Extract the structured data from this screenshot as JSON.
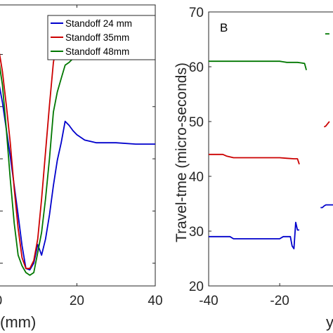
{
  "chart_data": [
    {
      "type": "line",
      "panel_label": "",
      "xlabel": "(mm)",
      "ylabel": "",
      "xlim": [
        -5,
        40
      ],
      "ylim": [
        -0.95,
        1.15
      ],
      "grid": false,
      "legend_position": "top-right",
      "x_ticks": [
        0,
        20,
        40
      ],
      "x_tick_labels": [
        "0",
        "20",
        "40"
      ],
      "series": [
        {
          "name": "Standoff 24 mm",
          "color": "#0000cc",
          "x": [
            -5,
            -4.5,
            -4,
            -3,
            -2,
            -1,
            0,
            1,
            2,
            3,
            4,
            5,
            6,
            7,
            8,
            9,
            10,
            11,
            12,
            13,
            14,
            15,
            16,
            17,
            18,
            19,
            20,
            22,
            25,
            30,
            35,
            40
          ],
          "y": [
            -0.02,
            0.08,
            0.12,
            0.22,
            0.3,
            0.38,
            0.58,
            0.42,
            0.22,
            0.02,
            -0.2,
            -0.42,
            -0.65,
            -0.82,
            -0.83,
            -0.78,
            -0.64,
            -0.72,
            -0.6,
            -0.42,
            -0.2,
            -0.01,
            0.12,
            0.28,
            0.25,
            0.21,
            0.18,
            0.14,
            0.12,
            0.12,
            0.11,
            0.11
          ]
        },
        {
          "name": "Standoff 35mm",
          "color": "#cc0000",
          "x": [
            -5,
            -4.5,
            -4,
            -3,
            -2,
            -1,
            0,
            1,
            2,
            3,
            4,
            5,
            6,
            7,
            8,
            9,
            10,
            11,
            12,
            13,
            14,
            15,
            16,
            17,
            18,
            19,
            20,
            22,
            25,
            28,
            30,
            35,
            40
          ],
          "y": [
            0.15,
            0.6,
            0.68,
            0.78,
            0.86,
            0.93,
            0.83,
            0.65,
            0.4,
            0.12,
            -0.22,
            -0.52,
            -0.74,
            -0.82,
            -0.82,
            -0.76,
            -0.6,
            -0.3,
            0.05,
            0.4,
            0.72,
            0.88,
            0.94,
            0.97,
            0.99,
            0.96,
            0.98,
            0.97,
            0.98,
            0.99,
            0.98,
            0.98,
            0.98
          ]
        },
        {
          "name": "Standoff 48mm",
          "color": "#007700",
          "x": [
            -5,
            -4.5,
            -4,
            -3,
            -2,
            -1,
            0,
            1,
            2,
            3,
            4,
            5,
            6,
            7,
            8,
            9,
            10,
            11,
            12,
            13,
            14,
            15,
            16,
            17,
            18,
            19,
            20,
            22,
            25,
            30,
            35,
            40
          ],
          "y": [
            -0.05,
            0.05,
            0.15,
            0.45,
            0.6,
            0.7,
            0.75,
            0.55,
            0.22,
            -0.15,
            -0.48,
            -0.72,
            -0.8,
            -0.85,
            -0.87,
            -0.85,
            -0.7,
            -0.55,
            -0.3,
            0.0,
            0.35,
            0.5,
            0.6,
            0.7,
            0.72,
            0.75,
            0.78,
            0.8,
            0.8,
            0.8,
            0.81,
            0.81
          ]
        }
      ]
    },
    {
      "type": "line",
      "panel_label": "B",
      "xlabel": "y",
      "ylabel": "Travel-tme (micro-seconds)",
      "xlim": [
        -40,
        -5
      ],
      "ylim": [
        20,
        70
      ],
      "y_ticks": [
        20,
        30,
        40,
        50,
        60,
        70
      ],
      "y_tick_labels": [
        "20",
        "30",
        "40",
        "50",
        "60",
        "70"
      ],
      "x_ticks": [
        -40,
        -20
      ],
      "x_tick_labels": [
        "-40",
        "-20"
      ],
      "grid": false,
      "series": [
        {
          "color": "#007700",
          "x": [
            -40,
            -35,
            -30,
            -25,
            -21,
            -20,
            -19,
            -18,
            -17,
            -16,
            -15,
            -14,
            -13,
            -12.5
          ],
          "y": [
            61,
            61,
            61,
            61,
            61,
            61,
            60.9,
            60.8,
            60.8,
            60.8,
            60.8,
            60.7,
            60.6,
            59.4
          ]
        },
        {
          "color": "#cc0000",
          "x": [
            -40,
            -36,
            -35,
            -33,
            -30,
            -25,
            -20,
            -18,
            -16,
            -15,
            -14.5
          ],
          "y": [
            44,
            44,
            43.7,
            43.4,
            43.4,
            43.4,
            43.4,
            43.3,
            43.2,
            43.2,
            42.2
          ]
        },
        {
          "color": "#0000cc",
          "x": [
            -40,
            -35,
            -34,
            -33,
            -30,
            -25,
            -20,
            -19,
            -18,
            -17,
            -16.5,
            -16,
            -15.5,
            -15,
            -14.5
          ],
          "y": [
            29,
            29,
            29,
            28.6,
            28.6,
            28.6,
            28.6,
            29,
            29,
            29,
            27.3,
            26.8,
            31.6,
            30.2,
            30.2
          ]
        },
        {
          "color": "#cc0000",
          "x": [
            -7.5,
            -7,
            -6.5,
            -6
          ],
          "y": [
            49,
            49.2,
            49.6,
            50
          ]
        },
        {
          "color": "#0000cc",
          "x": [
            -8.5,
            -8,
            -7.5,
            -7,
            -6.5,
            -6,
            -5.5,
            -5
          ],
          "y": [
            34.3,
            34.3,
            34.6,
            34.8,
            34.8,
            34.8,
            34.8,
            34.8
          ]
        },
        {
          "color": "#007700",
          "x": [
            -7.2,
            -6
          ],
          "y": [
            66,
            66
          ]
        }
      ]
    }
  ]
}
